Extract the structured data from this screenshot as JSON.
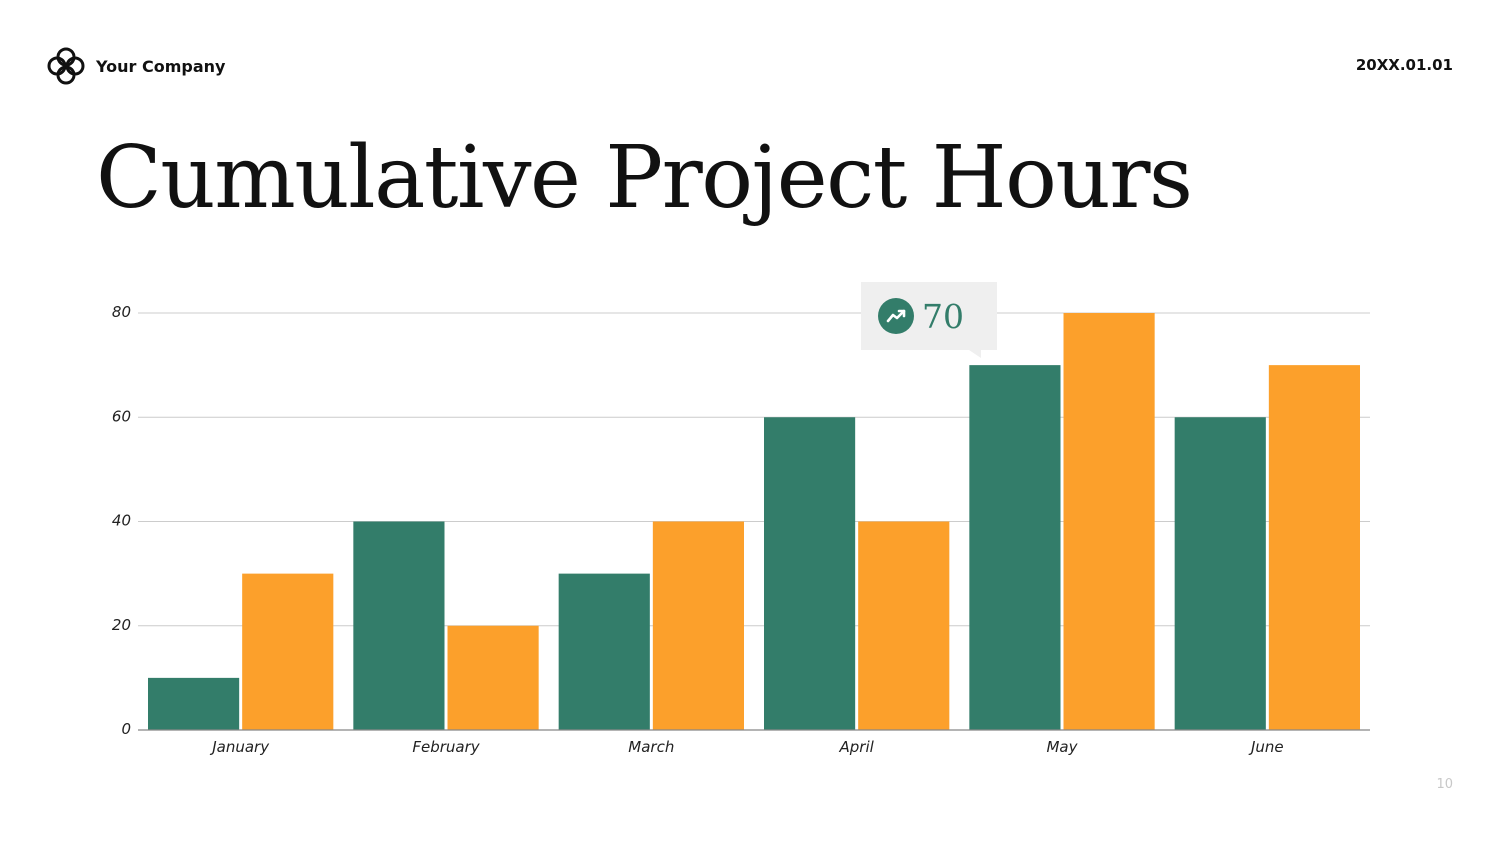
{
  "header": {
    "logo_icon": "interlocking-rings-logo",
    "company": "Your Company",
    "date": "20XX.01.01"
  },
  "title": "Cumulative Project Hours",
  "callout": {
    "icon": "trending-up-icon",
    "value": "70"
  },
  "page_number": "10",
  "colors": {
    "series_1": "#337d6a",
    "series_2": "#fca02b",
    "grid": "#cccccc",
    "axis": "#888888"
  },
  "chart_data": {
    "type": "bar",
    "categories": [
      "January",
      "February",
      "March",
      "April",
      "May",
      "June"
    ],
    "series": [
      {
        "values": [
          10,
          40,
          30,
          60,
          70,
          60
        ]
      },
      {
        "values": [
          30,
          20,
          40,
          40,
          80,
          70
        ]
      }
    ],
    "ylim": [
      0,
      80
    ],
    "yticks": [
      0,
      20,
      40,
      60,
      80
    ],
    "grid": true,
    "title": "",
    "xlabel": "",
    "ylabel": ""
  }
}
